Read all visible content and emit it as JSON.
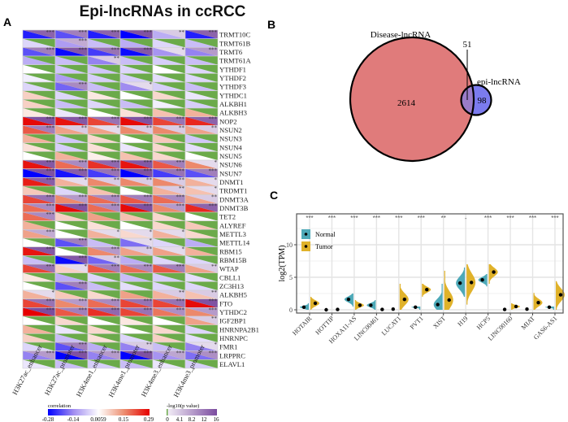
{
  "title": "Epi-lncRNAs in ccRCC",
  "panels": {
    "a": "A",
    "b": "B",
    "c": "C"
  },
  "colors": {
    "corr_neg": "#0000FF",
    "corr_mid_neg": "#A08CF0",
    "corr_zero": "#FFFFFF",
    "corr_mid_pos": "#EC8E70",
    "corr_pos": "#E60000",
    "p_nonsig": "#6BAA4A",
    "p_low": "#F3EEF7",
    "p_high": "#7B4C9F",
    "venn_disease": "#E07B7B",
    "venn_epi": "#7B7BEE",
    "venn_overlap": "#9A7CC8",
    "normal": "#4DA9B8",
    "tumor": "#E0B22A"
  },
  "heatmap": {
    "columns": [
      "H3K27ac_enhancer",
      "H3K27ac_promoter",
      "H3K4me1_enhancer",
      "H3K4me1_promoter",
      "H3K4me3_enhancer",
      "H3K4me3_promoter"
    ],
    "rows": [
      {
        "gene": "TRMT10C",
        "corr": [
          -0.25,
          -0.2,
          -0.25,
          -0.28,
          -0.1,
          -0.25
        ],
        "stars": [
          "***",
          "***",
          "***",
          "***",
          "**",
          "***"
        ]
      },
      {
        "gene": "TRMT61B",
        "corr": [
          -0.05,
          -0.12,
          -0.08,
          -0.1,
          -0.05,
          -0.08
        ],
        "stars": [
          "",
          "***",
          "",
          "",
          "",
          ""
        ]
      },
      {
        "gene": "TRMT6",
        "corr": [
          -0.2,
          -0.27,
          -0.22,
          -0.27,
          -0.13,
          -0.15
        ],
        "stars": [
          "***",
          "***",
          "***",
          "***",
          "*",
          "***"
        ]
      },
      {
        "gene": "TRMT61A",
        "corr": [
          -0.1,
          -0.08,
          -0.15,
          -0.08,
          -0.06,
          -0.08
        ],
        "stars": [
          "",
          "",
          "**",
          "",
          "",
          ""
        ]
      },
      {
        "gene": "YTHDF1",
        "corr": [
          0,
          -0.07,
          -0.07,
          -0.05,
          0,
          -0.05
        ],
        "stars": [
          "",
          "",
          "",
          "",
          "",
          ""
        ]
      },
      {
        "gene": "YTHDF2",
        "corr": [
          -0.02,
          -0.12,
          -0.06,
          -0.06,
          -0.04,
          -0.05
        ],
        "stars": [
          "",
          "",
          "",
          "",
          "",
          ""
        ]
      },
      {
        "gene": "YTHDF3",
        "corr": [
          -0.05,
          -0.18,
          -0.08,
          -0.14,
          -0.06,
          -0.08
        ],
        "stars": [
          "",
          "***",
          "",
          "*",
          "",
          ""
        ]
      },
      {
        "gene": "YTHDC1",
        "corr": [
          0.06,
          -0.05,
          0.03,
          0,
          0.05,
          -0.03
        ],
        "stars": [
          "",
          "",
          "",
          "",
          "",
          ""
        ]
      },
      {
        "gene": "ALKBH1",
        "corr": [
          0.06,
          -0.08,
          -0.05,
          -0.08,
          -0.02,
          -0.06
        ],
        "stars": [
          "",
          "",
          "",
          "",
          "",
          ""
        ]
      },
      {
        "gene": "ALKBH3",
        "corr": [
          0.03,
          -0.03,
          0,
          0.04,
          0.08,
          0.1
        ],
        "stars": [
          "",
          "",
          "",
          "",
          "",
          ""
        ]
      },
      {
        "gene": "NOP2",
        "corr": [
          0.28,
          0.27,
          0.22,
          0.28,
          0.22,
          0.25
        ],
        "stars": [
          "***",
          "***",
          "***",
          "***",
          "***",
          "***"
        ]
      },
      {
        "gene": "NSUN2",
        "corr": [
          0.2,
          0.12,
          0.12,
          0.15,
          0.15,
          0.12
        ],
        "stars": [
          "***",
          "**",
          "*",
          "**",
          "**",
          "**"
        ]
      },
      {
        "gene": "NSUN3",
        "corr": [
          0.1,
          -0.07,
          0.05,
          0,
          0.07,
          -0.07
        ],
        "stars": [
          "",
          "",
          "",
          "",
          "",
          ""
        ]
      },
      {
        "gene": "NSUN4",
        "corr": [
          0.04,
          -0.06,
          0.04,
          -0.03,
          0.05,
          -0.04
        ],
        "stars": [
          "",
          "",
          "",
          "",
          "",
          ""
        ]
      },
      {
        "gene": "NSUN5",
        "corr": [
          0,
          0.1,
          0.02,
          0.08,
          0.05,
          0
        ],
        "stars": [
          "",
          "",
          "",
          "",
          "",
          ""
        ]
      },
      {
        "gene": "NSUN6",
        "corr": [
          0.27,
          0.18,
          0.24,
          0.27,
          0.2,
          0.15
        ],
        "stars": [
          "***",
          "***",
          "***",
          "***",
          "***",
          "*"
        ]
      },
      {
        "gene": "NSUN7",
        "corr": [
          -0.28,
          -0.26,
          -0.22,
          -0.28,
          -0.22,
          -0.2
        ],
        "stars": [
          "***",
          "***",
          "***",
          "***",
          "***",
          "***"
        ]
      },
      {
        "gene": "DNMT1",
        "corr": [
          0.26,
          0.1,
          0.15,
          0.15,
          0.15,
          0.1
        ],
        "stars": [
          "***",
          "*",
          "**",
          "**",
          "**",
          "*"
        ]
      },
      {
        "gene": "TRDMT1",
        "corr": [
          0.07,
          -0.05,
          0.08,
          0,
          0.1,
          0.08
        ],
        "stars": [
          "",
          "",
          "",
          "",
          "**",
          "*"
        ]
      },
      {
        "gene": "DNMT3A",
        "corr": [
          0.22,
          0.15,
          0.18,
          0.2,
          0.18,
          0.12
        ],
        "stars": [
          "***",
          "***",
          "***",
          "***",
          "***",
          "**"
        ]
      },
      {
        "gene": "DNMT3B",
        "corr": [
          0.18,
          0.28,
          0.18,
          0.28,
          0.15,
          0.25
        ],
        "stars": [
          "***",
          "***",
          "***",
          "***",
          "***",
          "***"
        ]
      },
      {
        "gene": "TET2",
        "corr": [
          0.18,
          0.06,
          0.12,
          0.08,
          0.05,
          0
        ],
        "stars": [
          "***",
          "",
          "",
          "",
          "",
          ""
        ]
      },
      {
        "gene": "ALYREF",
        "corr": [
          0.1,
          0,
          0.04,
          0,
          0.05,
          0.07
        ],
        "stars": [
          "",
          "",
          "",
          "",
          "",
          ""
        ]
      },
      {
        "gene": "METTL3",
        "corr": [
          0.12,
          0,
          0.1,
          0.05,
          0.1,
          0.05
        ],
        "stars": [
          "***",
          "",
          "*",
          "*",
          "*",
          ""
        ]
      },
      {
        "gene": "METTL14",
        "corr": [
          0,
          -0.2,
          -0.08,
          -0.17,
          -0.05,
          -0.1
        ],
        "stars": [
          "",
          "***",
          "",
          "*",
          "",
          ""
        ]
      },
      {
        "gene": "RBM15",
        "corr": [
          0.27,
          0,
          0.15,
          0.12,
          0.12,
          0.1
        ],
        "stars": [
          "***",
          "",
          "***",
          "**",
          "*",
          ""
        ]
      },
      {
        "gene": "RBM15B",
        "corr": [
          -0.08,
          -0.27,
          -0.18,
          -0.1,
          -0.05,
          -0.05
        ],
        "stars": [
          "",
          "***",
          "**",
          "",
          "",
          ""
        ]
      },
      {
        "gene": "WTAP",
        "corr": [
          0.22,
          0.06,
          0.2,
          0.18,
          0.2,
          0.12
        ],
        "stars": [
          "***",
          "*",
          "***",
          "***",
          "***",
          "**"
        ]
      },
      {
        "gene": "CBLL1",
        "corr": [
          0.03,
          -0.1,
          -0.05,
          -0.08,
          -0.06,
          -0.04
        ],
        "stars": [
          "",
          "",
          "",
          "",
          "",
          ""
        ]
      },
      {
        "gene": "ZC3H13",
        "corr": [
          0,
          -0.2,
          -0.08,
          -0.04,
          -0.05,
          -0.05
        ],
        "stars": [
          "",
          "***",
          "",
          "",
          "",
          ""
        ]
      },
      {
        "gene": "ALKBH5",
        "corr": [
          0.1,
          0.07,
          0.05,
          0.12,
          0.1,
          0.08
        ],
        "stars": [
          "*",
          "",
          "",
          "",
          "**",
          "**"
        ]
      },
      {
        "gene": "FTO",
        "corr": [
          0.22,
          0.15,
          0.18,
          0.22,
          0.22,
          0.28
        ],
        "stars": [
          "***",
          "***",
          "***",
          "***",
          "***",
          "***"
        ]
      },
      {
        "gene": "YTHDC2",
        "corr": [
          0.29,
          0.2,
          0.24,
          0.22,
          0.17,
          0.15
        ],
        "stars": [
          "***",
          "***",
          "***",
          "***",
          "***",
          "***"
        ]
      },
      {
        "gene": "IGF2BP1",
        "corr": [
          0,
          0.05,
          0,
          0.03,
          0,
          0.12
        ],
        "stars": [
          "",
          "",
          "",
          "",
          "",
          "**"
        ]
      },
      {
        "gene": "HNRNPA2B1",
        "corr": [
          0.1,
          -0.03,
          0.05,
          0,
          0.05,
          -0.05
        ],
        "stars": [
          "",
          "",
          "",
          "",
          "",
          ""
        ]
      },
      {
        "gene": "HNRNPC",
        "corr": [
          0.06,
          -0.08,
          0.04,
          -0.05,
          0.06,
          -0.04
        ],
        "stars": [
          "",
          "",
          "",
          "",
          "",
          ""
        ]
      },
      {
        "gene": "FMR1",
        "corr": [
          -0.05,
          -0.2,
          -0.1,
          -0.15,
          -0.08,
          -0.15
        ],
        "stars": [
          "",
          "***",
          "",
          "**",
          "",
          "*"
        ]
      },
      {
        "gene": "LRPPRC",
        "corr": [
          -0.15,
          -0.28,
          -0.15,
          -0.28,
          -0.13,
          -0.17
        ],
        "stars": [
          "***",
          "***",
          "***",
          "***",
          "***",
          "***"
        ]
      },
      {
        "gene": "ELAVL1",
        "corr": [
          -0.03,
          -0.08,
          -0.06,
          -0.08,
          -0.03,
          -0.06
        ],
        "stars": [
          "",
          "",
          "",
          "",
          "",
          ""
        ]
      }
    ],
    "legend_corr": {
      "title": "correlation",
      "ticks": [
        "-0.28",
        "-0.14",
        "0.0059",
        "0.15",
        "0.29"
      ],
      "range": [
        -0.28,
        0.29
      ]
    },
    "legend_p": {
      "title": "-log10(p value)",
      "ticks": [
        "0",
        "4.1",
        "8.2",
        "12",
        "16"
      ],
      "range": [
        0,
        16
      ]
    }
  },
  "venn": {
    "disease_label": "Disease-lncRNA",
    "epi_label": "epi-lncRNA",
    "disease_only": "2614",
    "overlap": "51",
    "epi_only": "98"
  },
  "chart_data": {
    "type": "violin",
    "ylabel": "log2(TPM)",
    "yticks": [
      "0",
      "5",
      "10"
    ],
    "ylim": [
      -0.6,
      15.3
    ],
    "legend": {
      "position": "top-left",
      "entries": [
        "Normal",
        "Tumor"
      ]
    },
    "categories": [
      "HOTAIR",
      "HOTTIP",
      "HOXA11-AS",
      "LINC00461",
      "LUCAT1",
      "PVT1",
      "XIST",
      "H19",
      "HCP5",
      "LINC00160",
      "MIAT",
      "GAS6-AS1"
    ],
    "significance": [
      "***",
      "***",
      "***",
      "***",
      "***",
      "***",
      "**",
      "-",
      "***",
      "***",
      "***",
      "***"
    ],
    "series": [
      {
        "name": "Normal",
        "center": [
          0.4,
          0,
          1.6,
          0.7,
          0.1,
          0.4,
          0.8,
          4.1,
          4.6,
          0.05,
          0.1,
          0.4
        ],
        "range": [
          [
            0,
            1
          ],
          [
            0,
            0
          ],
          [
            0.5,
            2.5
          ],
          [
            0,
            1.5
          ],
          [
            0,
            0
          ],
          [
            0,
            0.5
          ],
          [
            0,
            4
          ],
          [
            2,
            6.5
          ],
          [
            3.6,
            5.5
          ],
          [
            0,
            0
          ],
          [
            0,
            0
          ],
          [
            0,
            0.5
          ]
        ]
      },
      {
        "name": "Tumor",
        "center": [
          1.0,
          0.05,
          0.7,
          0.05,
          1.6,
          3.1,
          1.5,
          4.2,
          5.8,
          0.5,
          1.1,
          2.3
        ],
        "range": [
          [
            0,
            2
          ],
          [
            0,
            0
          ],
          [
            0,
            1.5
          ],
          [
            0,
            0
          ],
          [
            0,
            4
          ],
          [
            2,
            4
          ],
          [
            0,
            6
          ],
          [
            0.8,
            7
          ],
          [
            4,
            7
          ],
          [
            0,
            1
          ],
          [
            0,
            2.6
          ],
          [
            0,
            4.4
          ]
        ]
      }
    ]
  }
}
